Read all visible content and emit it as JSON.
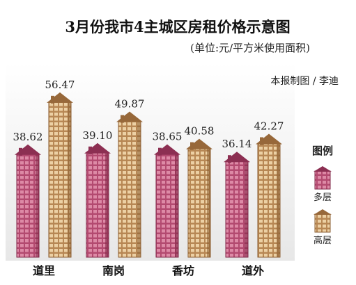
{
  "chart_data": {
    "type": "bar",
    "title": "3月份我市4主城区房租价格示意图",
    "subtitle": "(单位:元/平方米使用面积)",
    "credit": "本报制图 / 李迪",
    "categories": [
      "道里",
      "南岗",
      "香坊",
      "道外"
    ],
    "series": [
      {
        "name": "多层",
        "values": [
          38.62,
          39.1,
          38.65,
          36.14
        ],
        "color": "#b34a70"
      },
      {
        "name": "高层",
        "values": [
          56.47,
          49.87,
          40.58,
          42.27
        ],
        "color": "#c79a66"
      }
    ],
    "value_labels": {
      "多层": [
        "38.62",
        "39.10",
        "38.65",
        "36.14"
      ],
      "高层": [
        "56.47",
        "49.87",
        "40.58",
        "42.27"
      ]
    },
    "legend": {
      "title": "图例",
      "position": "right"
    },
    "ylim": [
      0,
      60
    ],
    "grid": false
  }
}
